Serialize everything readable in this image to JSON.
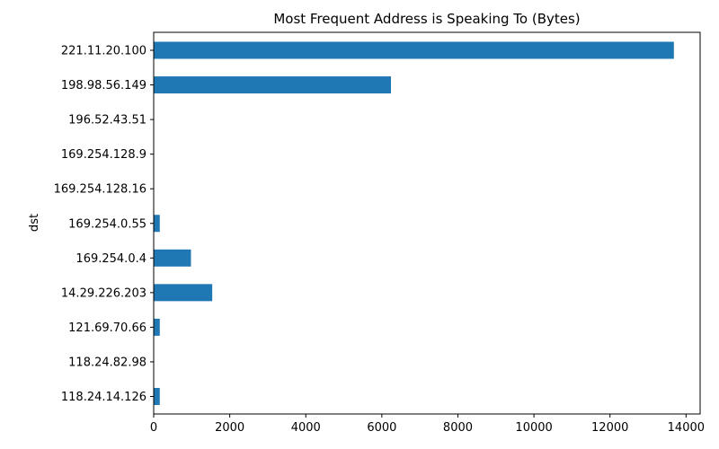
{
  "chart_data": {
    "type": "bar",
    "orientation": "horizontal",
    "title": "Most Frequent Address is Speaking To (Bytes)",
    "xlabel": "",
    "ylabel": "dst",
    "categories": [
      "118.24.14.126",
      "118.24.82.98",
      "121.69.70.66",
      "14.29.226.203",
      "169.254.0.4",
      "169.254.0.55",
      "169.254.128.16",
      "169.254.128.9",
      "196.52.43.51",
      "198.98.56.149",
      "221.11.20.100"
    ],
    "values": [
      160,
      0,
      160,
      1540,
      980,
      160,
      0,
      0,
      0,
      6240,
      13680
    ],
    "xlim": [
      0,
      14370
    ],
    "xticks": [
      0,
      2000,
      4000,
      6000,
      8000,
      10000,
      12000,
      14000
    ],
    "grid": false,
    "bar_color": "#1f77b4"
  }
}
